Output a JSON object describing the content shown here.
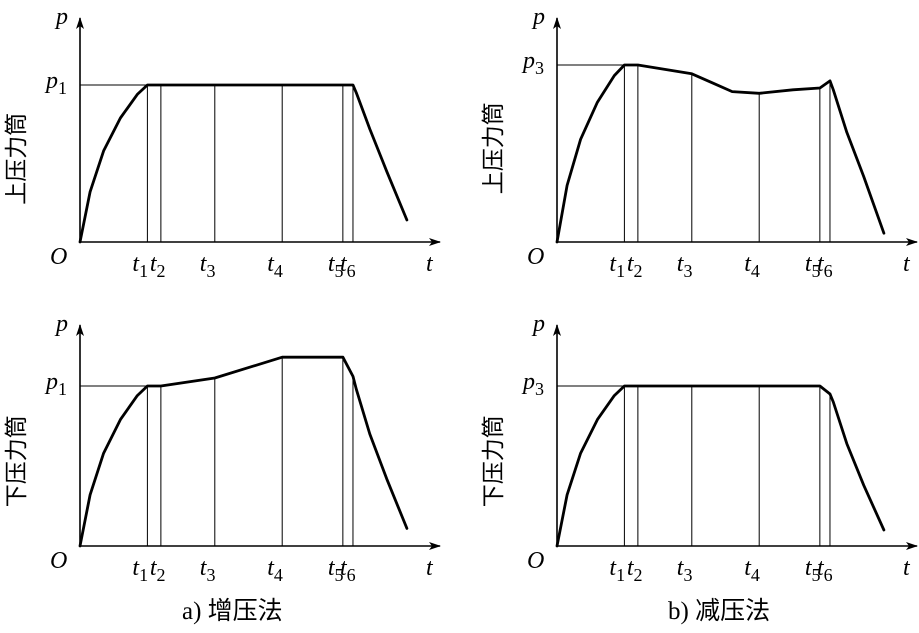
{
  "captions": {
    "a": "a) 增压法",
    "b": "b) 减压法"
  },
  "chart_data": [
    {
      "type": "line",
      "panel": "a-upper",
      "ylabel_side": "上压力筒",
      "y_axis_symbol": "p",
      "x_axis_symbol": "t",
      "origin_label": "O",
      "level_label": {
        "base": "p",
        "sub": "1"
      },
      "ticks": [
        {
          "base": "t",
          "sub": "1"
        },
        {
          "base": "t",
          "sub": "2"
        },
        {
          "base": "t",
          "sub": "3"
        },
        {
          "base": "t",
          "sub": "4"
        },
        {
          "base": "t",
          "sub": "5"
        },
        {
          "base": "t",
          "sub": "6"
        }
      ],
      "tick_x": [
        1.0,
        1.2,
        2.0,
        3.0,
        3.9,
        4.05
      ],
      "xlim": [
        0,
        5.0
      ],
      "ylim": [
        0,
        1.25
      ],
      "series": [
        {
          "x": [
            0,
            0.15,
            0.35,
            0.6,
            0.85,
            1.0,
            1.2,
            2.0,
            3.0,
            3.9,
            4.05,
            4.1,
            4.3,
            4.55,
            4.85
          ],
          "y": [
            0,
            0.32,
            0.58,
            0.79,
            0.94,
            1.0,
            1.0,
            1.0,
            1.0,
            1.0,
            1.0,
            0.95,
            0.72,
            0.45,
            0.14
          ]
        }
      ]
    },
    {
      "type": "line",
      "panel": "b-upper",
      "ylabel_side": "上压力筒",
      "y_axis_symbol": "p",
      "x_axis_symbol": "t",
      "origin_label": "O",
      "level_label": {
        "base": "p",
        "sub": "3"
      },
      "ticks": [
        {
          "base": "t",
          "sub": "1"
        },
        {
          "base": "t",
          "sub": "2"
        },
        {
          "base": "t",
          "sub": "3"
        },
        {
          "base": "t",
          "sub": "4"
        },
        {
          "base": "t",
          "sub": "5"
        },
        {
          "base": "t",
          "sub": "6"
        }
      ],
      "tick_x": [
        1.0,
        1.2,
        2.0,
        3.0,
        3.9,
        4.05
      ],
      "xlim": [
        0,
        5.0
      ],
      "ylim": [
        0,
        1.25
      ],
      "series": [
        {
          "x": [
            0,
            0.15,
            0.35,
            0.6,
            0.85,
            1.0,
            1.2,
            2.0,
            2.3,
            2.6,
            3.0,
            3.5,
            3.9,
            4.05,
            4.1,
            4.3,
            4.55,
            4.85
          ],
          "y": [
            0,
            0.32,
            0.58,
            0.79,
            0.94,
            1.0,
            1.0,
            0.95,
            0.9,
            0.85,
            0.84,
            0.86,
            0.87,
            0.91,
            0.86,
            0.62,
            0.37,
            0.05
          ]
        }
      ]
    },
    {
      "type": "line",
      "panel": "a-lower",
      "ylabel_side": "下压力筒",
      "y_axis_symbol": "p",
      "x_axis_symbol": "t",
      "origin_label": "O",
      "level_label": {
        "base": "p",
        "sub": "1"
      },
      "ticks": [
        {
          "base": "t",
          "sub": "1"
        },
        {
          "base": "t",
          "sub": "2"
        },
        {
          "base": "t",
          "sub": "3"
        },
        {
          "base": "t",
          "sub": "4"
        },
        {
          "base": "t",
          "sub": "5"
        },
        {
          "base": "t",
          "sub": "6"
        }
      ],
      "tick_x": [
        1.0,
        1.2,
        2.0,
        3.0,
        3.9,
        4.05
      ],
      "xlim": [
        0,
        5.0
      ],
      "ylim": [
        0,
        1.25
      ],
      "series": [
        {
          "x": [
            0,
            0.15,
            0.35,
            0.6,
            0.85,
            1.0,
            1.2,
            2.0,
            3.0,
            3.9,
            4.05,
            4.1,
            4.3,
            4.55,
            4.85
          ],
          "y": [
            0,
            0.32,
            0.58,
            0.79,
            0.94,
            1.0,
            1.0,
            1.05,
            1.18,
            1.18,
            1.06,
            0.98,
            0.7,
            0.42,
            0.11
          ]
        }
      ]
    },
    {
      "type": "line",
      "panel": "b-lower",
      "ylabel_side": "下压力筒",
      "y_axis_symbol": "p",
      "x_axis_symbol": "t",
      "origin_label": "O",
      "level_label": {
        "base": "p",
        "sub": "3"
      },
      "ticks": [
        {
          "base": "t",
          "sub": "1"
        },
        {
          "base": "t",
          "sub": "2"
        },
        {
          "base": "t",
          "sub": "3"
        },
        {
          "base": "t",
          "sub": "4"
        },
        {
          "base": "t",
          "sub": "5"
        },
        {
          "base": "t",
          "sub": "6"
        }
      ],
      "tick_x": [
        1.0,
        1.2,
        2.0,
        3.0,
        3.9,
        4.05
      ],
      "xlim": [
        0,
        5.0
      ],
      "ylim": [
        0,
        1.25
      ],
      "series": [
        {
          "x": [
            0,
            0.15,
            0.35,
            0.6,
            0.85,
            1.0,
            1.2,
            2.0,
            3.0,
            3.9,
            4.05,
            4.1,
            4.3,
            4.55,
            4.85
          ],
          "y": [
            0,
            0.32,
            0.58,
            0.79,
            0.94,
            1.0,
            1.0,
            1.0,
            1.0,
            1.0,
            0.95,
            0.9,
            0.64,
            0.38,
            0.1
          ]
        }
      ]
    }
  ]
}
